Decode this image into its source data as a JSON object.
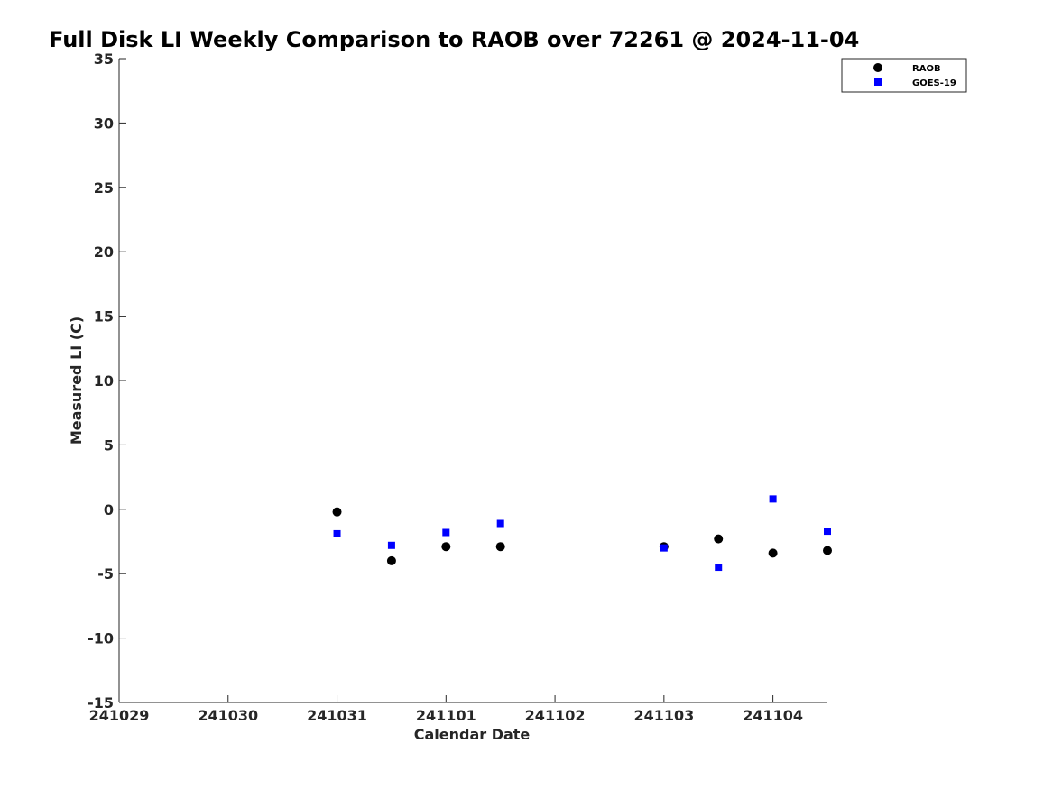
{
  "chart_data": {
    "type": "scatter",
    "title": "Full Disk LI Weekly Comparison to RAOB over 72261 @ 2024-11-04",
    "xlabel": "Calendar Date",
    "ylabel": "Measured LI (C)",
    "x_ticks": [
      "241029",
      "241030",
      "241031",
      "241101",
      "241102",
      "241103",
      "241104"
    ],
    "x_tick_positions": [
      0,
      1,
      2,
      3,
      4,
      5,
      6
    ],
    "xlim": [
      0,
      6.5
    ],
    "ylim": [
      -15,
      35
    ],
    "y_ticks": [
      -15,
      -10,
      -5,
      0,
      5,
      10,
      15,
      20,
      25,
      30,
      35
    ],
    "grid": false,
    "legend_position": "top-right",
    "series": [
      {
        "name": "RAOB",
        "marker": "circle",
        "color": "#000000",
        "x": [
          2,
          2.5,
          3,
          3.5,
          5,
          5.5,
          6,
          6.5
        ],
        "y": [
          -0.2,
          -4.0,
          -2.9,
          -2.9,
          -2.9,
          -2.3,
          -3.4,
          -3.2
        ]
      },
      {
        "name": "GOES-19",
        "marker": "square",
        "color": "#0000ff",
        "x": [
          2,
          2.5,
          3,
          3.5,
          5,
          5.5,
          6,
          6.5
        ],
        "y": [
          -1.9,
          -2.8,
          -1.8,
          -1.1,
          -3.0,
          -4.5,
          0.8,
          -1.7
        ]
      }
    ]
  }
}
